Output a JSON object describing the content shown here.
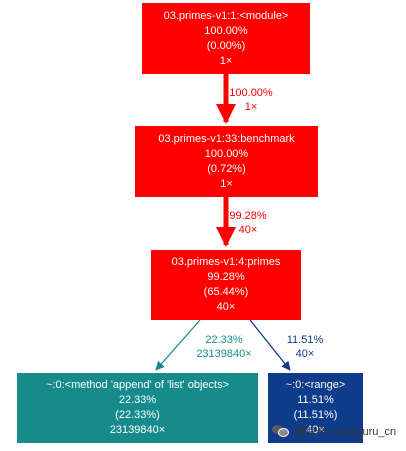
{
  "nodes": {
    "module": {
      "l1": "03.primes-v1:1:<module>",
      "l2": "100.00%",
      "l3": "(0.00%)",
      "l4": "1×"
    },
    "benchmark": {
      "l1": "03.primes-v1:33:benchmark",
      "l2": "100.00%",
      "l3": "(0.72%)",
      "l4": "1×"
    },
    "primes": {
      "l1": "03.primes-v1:4:primes",
      "l2": "99.28%",
      "l3": "(65.44%)",
      "l4": "40×"
    },
    "append": {
      "l1": "~:0:<method 'append' of 'list' objects>",
      "l2": "22.33%",
      "l3": "(22.33%)",
      "l4": "23139840×"
    },
    "range": {
      "l1": "~:0:<range>",
      "l2": "11.51%",
      "l3": "(11.51%)",
      "l4": "40×"
    }
  },
  "edges": {
    "module_benchmark": {
      "pct": "100.00%",
      "count": "1×"
    },
    "benchmark_primes": {
      "pct": "99.28%",
      "count": "40×"
    },
    "primes_append": {
      "pct": "22.33%",
      "count": "23139840×"
    },
    "primes_range": {
      "pct": "11.51%",
      "count": "40×"
    }
  },
  "watermark": {
    "text": "微信号: Dataguru_cn",
    "icon": "wechat-icon"
  },
  "colors": {
    "hot": "#ff0000",
    "teal": "#178b8c",
    "blue": "#0e3b8a"
  }
}
